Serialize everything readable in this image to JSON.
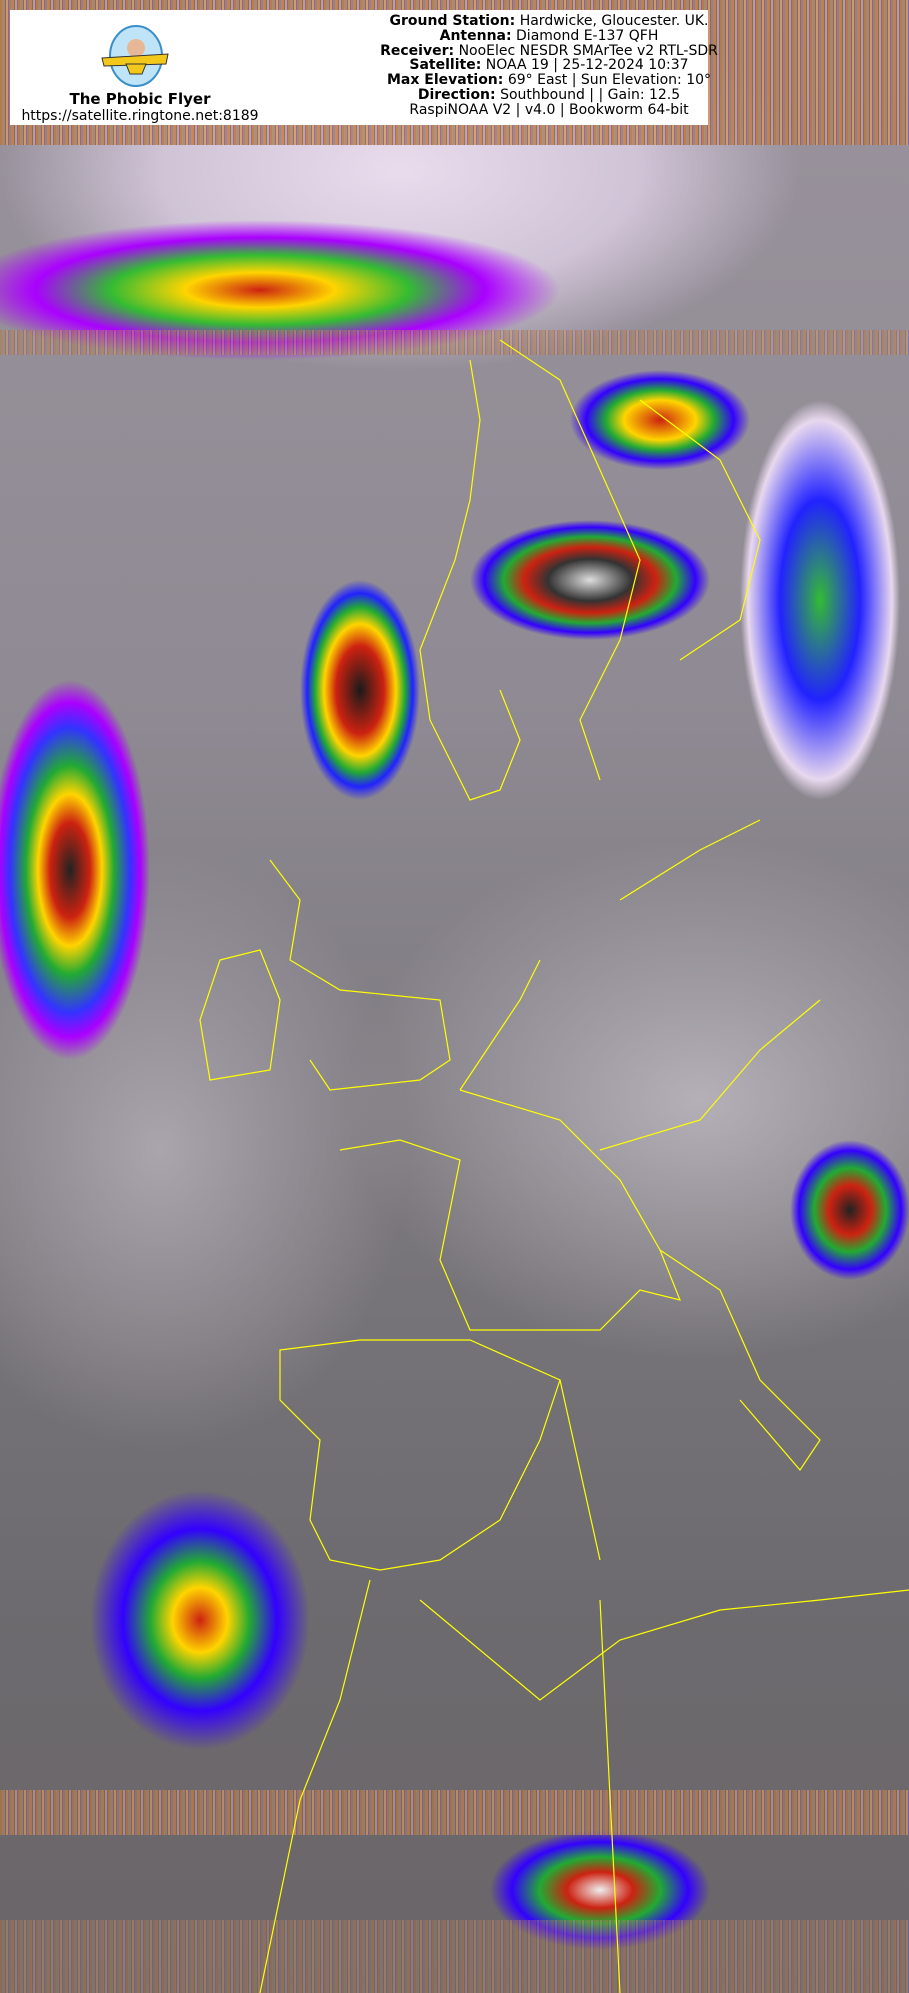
{
  "branding": {
    "logo_text": "The Phobic Flyer",
    "name": "The Phobic Flyer",
    "url": "https://satellite.ringtone.net:8189"
  },
  "pass_info": {
    "ground_station_label": "Ground Station:",
    "ground_station": "Hardwicke, Gloucester. UK.",
    "antenna_label": "Antenna:",
    "antenna": "Diamond E-137 QFH",
    "receiver_label": "Receiver:",
    "receiver": "NooElec NESDR SMArTee v2 RTL-SDR",
    "satellite_label": "Satellite:",
    "satellite": "NOAA 19 | 25-12-2024 10:37",
    "max_elevation_label": "Max Elevation:",
    "max_elevation": "69° East | Sun Elevation: 10°",
    "direction_label": "Direction:",
    "direction": "Southbound | | Gain: 12.5",
    "software": "RaspiNOAA V2 | v4.0 | Bookworm 64-bit"
  },
  "imagery": {
    "type": "NOAA APT false-colour thermal infrared",
    "overlay_color": "#ffff00",
    "palette": [
      "#000000",
      "#c02010",
      "#ffd400",
      "#22aa33",
      "#2222ff",
      "#aa00ff",
      "#e8dced"
    ]
  }
}
